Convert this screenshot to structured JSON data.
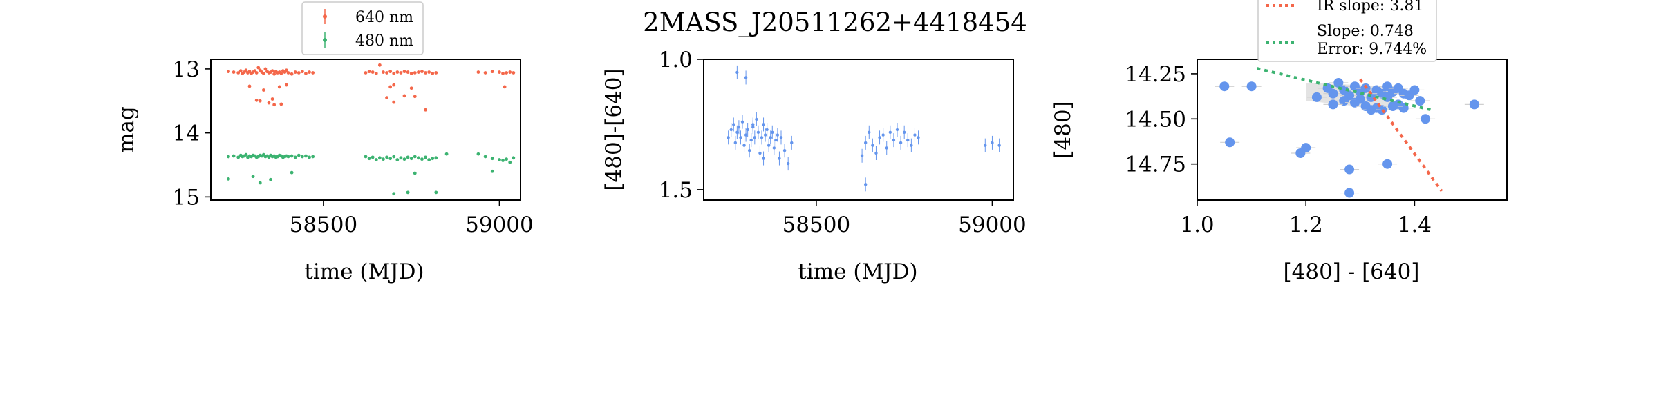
{
  "figure": {
    "title": "2MASS_J20511262+4418454"
  },
  "colors": {
    "red": "#f4674a",
    "green": "#3cb371",
    "blue": "#6495ed",
    "axis": "#000000",
    "gray_band": "#c0c0c0"
  },
  "chart_data": [
    {
      "type": "scatter",
      "id": "lightcurve",
      "xlabel": "time (MJD)",
      "ylabel": "mag",
      "xlim": [
        58180,
        59060
      ],
      "ylim": [
        15.05,
        12.85
      ],
      "xticks": [
        58500,
        59000
      ],
      "yticks": [
        13,
        14,
        15
      ],
      "legend": {
        "placement": "top-center",
        "entries": [
          "640 nm",
          "480 nm"
        ]
      },
      "series": [
        {
          "name": "640 nm",
          "color": "#f4674a",
          "x": [
            58230,
            58245,
            58258,
            58265,
            58270,
            58275,
            58280,
            58285,
            58290,
            58295,
            58300,
            58305,
            58310,
            58315,
            58320,
            58325,
            58330,
            58335,
            58340,
            58345,
            58350,
            58355,
            58360,
            58365,
            58370,
            58375,
            58380,
            58385,
            58390,
            58395,
            58400,
            58410,
            58420,
            58430,
            58440,
            58450,
            58460,
            58470,
            58290,
            58310,
            58330,
            58345,
            58360,
            58375,
            58395,
            58320,
            58355,
            58380,
            58620,
            58630,
            58640,
            58650,
            58660,
            58670,
            58680,
            58690,
            58700,
            58710,
            58720,
            58730,
            58740,
            58750,
            58760,
            58770,
            58780,
            58790,
            58800,
            58810,
            58820,
            58680,
            58700,
            58730,
            58760,
            58790,
            58690,
            58750,
            58700,
            58940,
            58960,
            58980,
            59000,
            59010,
            59020,
            59030,
            59040,
            59015
          ],
          "y": [
            13.04,
            13.05,
            13.06,
            13.03,
            13.07,
            13.05,
            13.02,
            13.06,
            13.04,
            13.07,
            13.05,
            13.03,
            13.06,
            12.98,
            13.02,
            13.05,
            13.07,
            13.0,
            13.04,
            13.06,
            13.05,
            13.03,
            13.08,
            13.04,
            13.06,
            13.05,
            13.07,
            13.03,
            13.05,
            13.02,
            13.06,
            13.08,
            13.05,
            13.06,
            13.04,
            13.07,
            13.05,
            13.06,
            13.27,
            13.49,
            13.33,
            13.53,
            13.56,
            13.28,
            13.25,
            13.5,
            13.47,
            13.55,
            13.06,
            13.04,
            13.05,
            13.07,
            12.94,
            13.05,
            13.06,
            13.04,
            13.07,
            13.05,
            13.06,
            13.04,
            13.05,
            13.07,
            13.06,
            13.05,
            13.04,
            13.06,
            13.05,
            13.07,
            13.06,
            13.45,
            13.25,
            13.42,
            13.43,
            13.64,
            13.28,
            13.3,
            13.52,
            13.05,
            13.06,
            13.04,
            13.05,
            13.07,
            13.06,
            13.05,
            13.06,
            13.28
          ]
        },
        {
          "name": "480 nm",
          "color": "#3cb371",
          "x": [
            58230,
            58245,
            58258,
            58265,
            58270,
            58275,
            58280,
            58285,
            58290,
            58295,
            58300,
            58305,
            58310,
            58315,
            58320,
            58325,
            58330,
            58335,
            58340,
            58345,
            58350,
            58355,
            58360,
            58365,
            58370,
            58375,
            58380,
            58385,
            58390,
            58395,
            58400,
            58410,
            58420,
            58430,
            58440,
            58450,
            58460,
            58470,
            58230,
            58300,
            58320,
            58350,
            58410,
            58620,
            58630,
            58640,
            58650,
            58660,
            58670,
            58680,
            58690,
            58700,
            58710,
            58720,
            58730,
            58740,
            58750,
            58760,
            58770,
            58780,
            58790,
            58800,
            58810,
            58820,
            58700,
            58740,
            58760,
            58820,
            58940,
            58960,
            58980,
            59000,
            59010,
            59020,
            59030,
            59040,
            58850,
            58980
          ],
          "y": [
            14.37,
            14.36,
            14.38,
            14.35,
            14.37,
            14.36,
            14.34,
            14.38,
            14.36,
            14.37,
            14.35,
            14.36,
            14.38,
            14.37,
            14.35,
            14.36,
            14.34,
            14.37,
            14.36,
            14.38,
            14.35,
            14.37,
            14.36,
            14.38,
            14.37,
            14.35,
            14.36,
            14.38,
            14.37,
            14.36,
            14.37,
            14.36,
            14.38,
            14.35,
            14.37,
            14.36,
            14.38,
            14.37,
            14.72,
            14.68,
            14.78,
            14.73,
            14.62,
            14.37,
            14.4,
            14.38,
            14.42,
            14.39,
            14.41,
            14.38,
            14.4,
            14.37,
            14.42,
            14.39,
            14.41,
            14.38,
            14.4,
            14.37,
            14.39,
            14.41,
            14.38,
            14.42,
            14.4,
            14.39,
            14.95,
            14.93,
            14.63,
            14.93,
            14.33,
            14.37,
            14.4,
            14.42,
            14.43,
            14.41,
            14.46,
            14.39,
            14.33,
            14.6
          ]
        }
      ]
    },
    {
      "type": "scatter",
      "id": "color_curve",
      "xlabel": "time (MJD)",
      "ylabel": "[480]-[640]",
      "xlim": [
        58180,
        59060
      ],
      "ylim": [
        1.54,
        1.0
      ],
      "xticks": [
        58500,
        59000
      ],
      "yticks": [
        1.0,
        1.5
      ],
      "series": [
        {
          "name": "",
          "color": "#6495ed",
          "x": [
            58250,
            58258,
            58265,
            58270,
            58275,
            58280,
            58285,
            58290,
            58295,
            58300,
            58305,
            58310,
            58315,
            58320,
            58325,
            58330,
            58335,
            58340,
            58345,
            58350,
            58355,
            58360,
            58365,
            58370,
            58375,
            58380,
            58385,
            58390,
            58395,
            58400,
            58410,
            58420,
            58430,
            58275,
            58300,
            58320,
            58350,
            58640,
            58650,
            58660,
            58670,
            58680,
            58690,
            58700,
            58710,
            58720,
            58730,
            58740,
            58750,
            58760,
            58770,
            58780,
            58790,
            58640,
            58630,
            58980,
            59000,
            59020
          ],
          "y": [
            1.3,
            1.27,
            1.25,
            1.32,
            1.28,
            1.26,
            1.3,
            1.24,
            1.33,
            1.29,
            1.27,
            1.35,
            1.31,
            1.26,
            1.3,
            1.23,
            1.28,
            1.36,
            1.3,
            1.25,
            1.29,
            1.27,
            1.33,
            1.3,
            1.28,
            1.34,
            1.31,
            1.29,
            1.38,
            1.3,
            1.35,
            1.4,
            1.32,
            1.05,
            1.07,
            1.25,
            1.38,
            1.32,
            1.28,
            1.33,
            1.36,
            1.3,
            1.29,
            1.34,
            1.28,
            1.31,
            1.27,
            1.32,
            1.28,
            1.31,
            1.33,
            1.29,
            1.3,
            1.48,
            1.37,
            1.33,
            1.32,
            1.33
          ]
        }
      ]
    },
    {
      "type": "scatter",
      "id": "color_magnitude",
      "xlabel": "[480] - [640]",
      "ylabel": "[480]",
      "xlim": [
        1.0,
        1.57
      ],
      "ylim": [
        14.95,
        14.17
      ],
      "xticks": [
        1.0,
        1.2,
        1.4
      ],
      "yticks": [
        14.25,
        14.5,
        14.75
      ],
      "legend": {
        "placement": "top-center",
        "entries": [
          "IR slope: 3.81",
          "Slope: 0.748",
          "Error: 9.744%"
        ]
      },
      "lines": [
        {
          "name": "IR slope: 3.81",
          "color": "#f4674a",
          "x": [
            1.3,
            1.45
          ],
          "y": [
            14.28,
            14.9
          ]
        },
        {
          "name": "Slope: 0.748",
          "color": "#3cb371",
          "x": [
            1.11,
            1.43
          ],
          "y": [
            14.22,
            14.45
          ]
        }
      ],
      "series": [
        {
          "name": "",
          "color": "#6495ed",
          "x": [
            1.05,
            1.1,
            1.22,
            1.24,
            1.25,
            1.26,
            1.27,
            1.28,
            1.29,
            1.3,
            1.31,
            1.32,
            1.33,
            1.34,
            1.35,
            1.36,
            1.37,
            1.38,
            1.39,
            1.4,
            1.41,
            1.27,
            1.29,
            1.31,
            1.33,
            1.35,
            1.37,
            1.25,
            1.3,
            1.34,
            1.38,
            1.42,
            1.51,
            1.06,
            1.2,
            1.19,
            1.28,
            1.28,
            1.35,
            1.32,
            1.36
          ],
          "y": [
            14.32,
            14.32,
            14.38,
            14.33,
            14.36,
            14.3,
            14.34,
            14.37,
            14.32,
            14.35,
            14.33,
            14.38,
            14.34,
            14.36,
            14.32,
            14.35,
            14.33,
            14.36,
            14.37,
            14.34,
            14.4,
            14.4,
            14.41,
            14.43,
            14.44,
            14.38,
            14.42,
            14.42,
            14.39,
            14.45,
            14.44,
            14.5,
            14.42,
            14.63,
            14.66,
            14.69,
            14.78,
            14.91,
            14.75,
            14.45,
            14.43
          ]
        }
      ]
    }
  ]
}
